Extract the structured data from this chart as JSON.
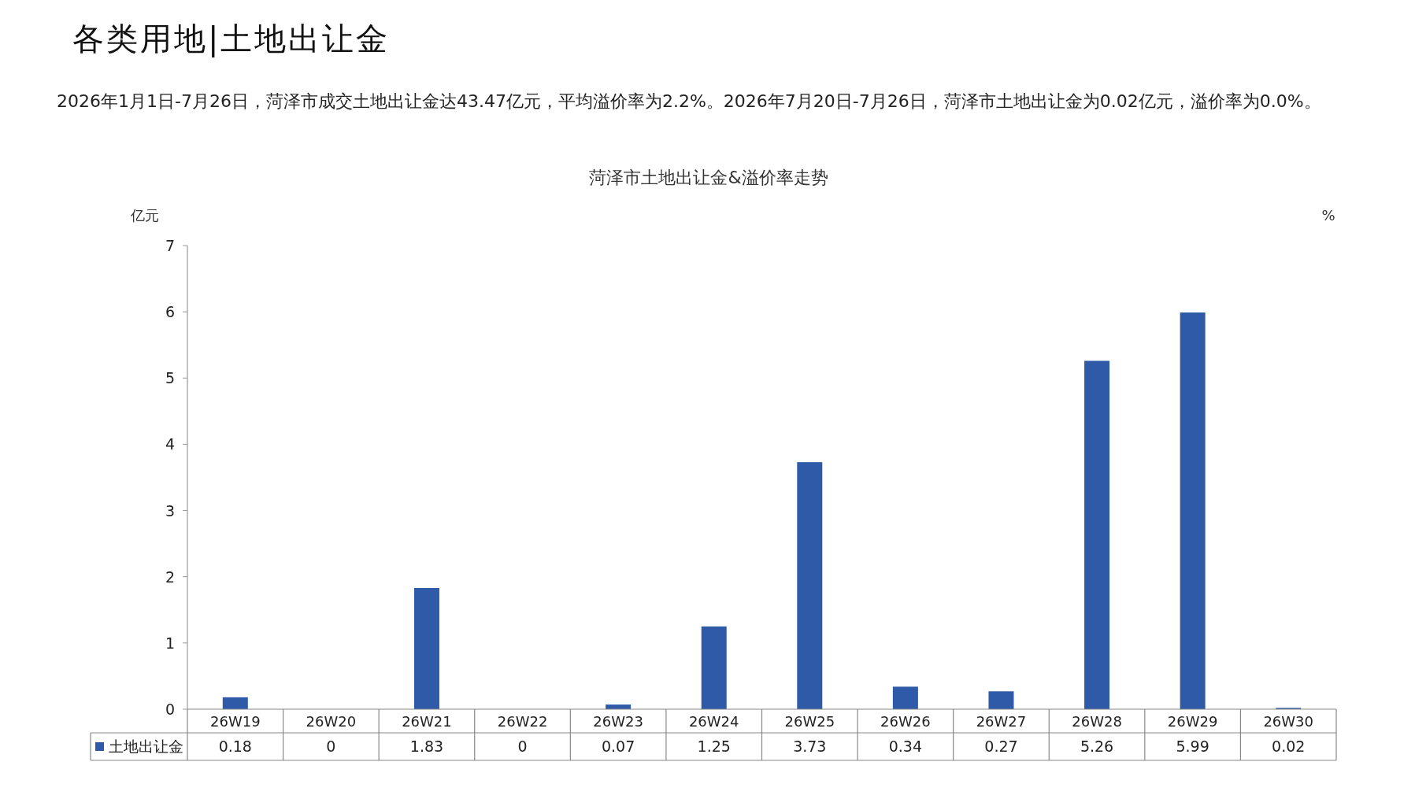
{
  "chart_data": {
    "type": "bar",
    "title": "菏泽市土地出让金&溢价率走势",
    "annotations": [
      "各类用地|土地出让金",
      "2026年1月1日-7月26日，菏泽市成交土地出让金达43.47亿元，平均溢价率为2.2%。2026年7月20日-7月26日，菏泽市土地出让金为0.02亿元，溢价率为0.0%。"
    ],
    "ylabel": "亿元",
    "y2label": "%",
    "categories": [
      "26W19",
      "26W20",
      "26W21",
      "26W22",
      "26W23",
      "26W24",
      "26W25",
      "26W26",
      "26W27",
      "26W28",
      "26W29",
      "26W30"
    ],
    "series": [
      {
        "name": "土地出让金",
        "color": "#2e5aa7",
        "values": [
          0.18,
          0,
          1.83,
          0,
          0.07,
          1.25,
          3.73,
          0.34,
          0.27,
          5.26,
          5.99,
          0.02
        ]
      }
    ],
    "ylim": [
      0,
      7
    ],
    "yticks": [
      0,
      1,
      2,
      3,
      4,
      5,
      6,
      7
    ],
    "data_labels": true,
    "legend": "bottom"
  }
}
